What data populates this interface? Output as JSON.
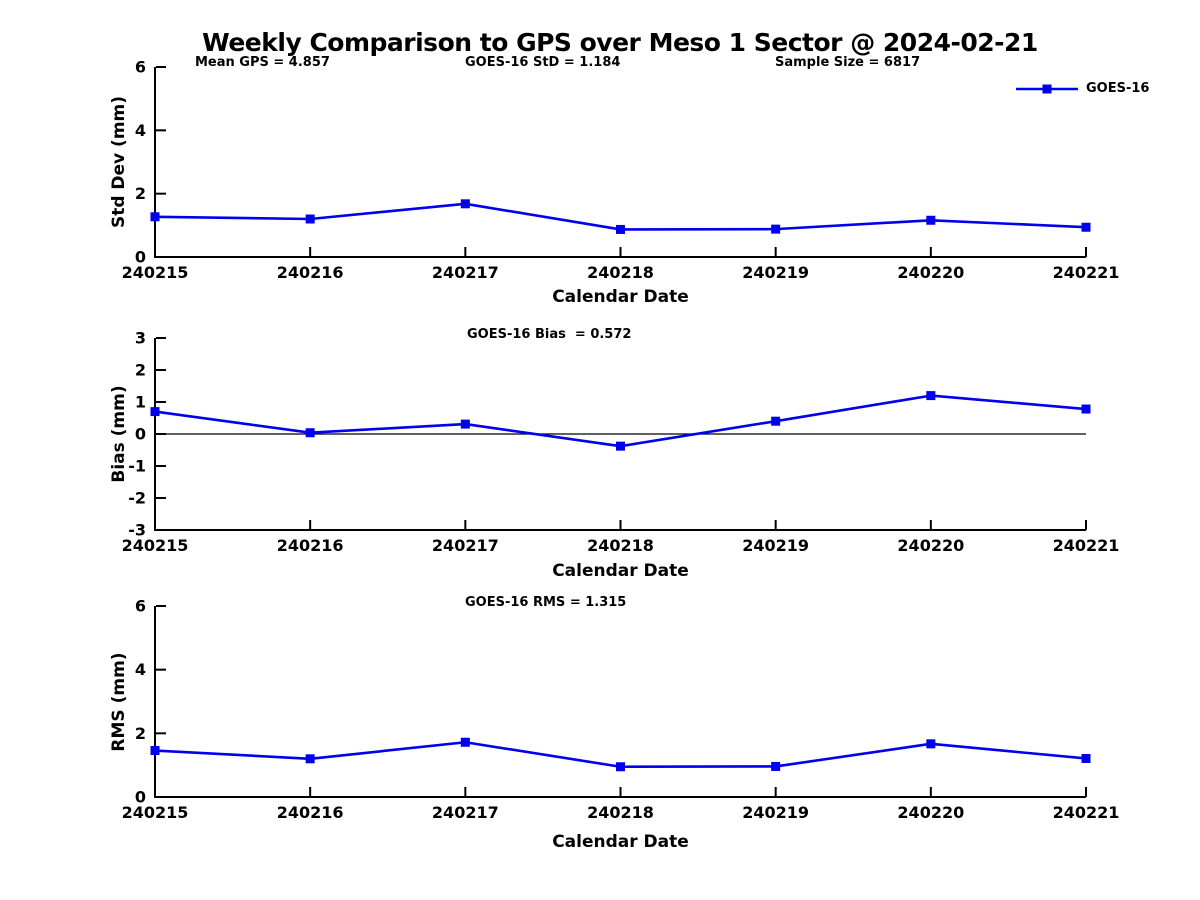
{
  "figure": {
    "title": "Weekly Comparison to GPS over Meso 1 Sector @ 2024-02-21"
  },
  "legend": {
    "label": "GOES-16",
    "position": "top-right"
  },
  "colors": {
    "line": "#0000EE",
    "axis": "#000000",
    "text": "#000000",
    "background": "#FFFFFF"
  },
  "chart_data": [
    {
      "type": "line",
      "subplot": "std-dev",
      "ylabel": "Std Dev (mm)",
      "xlabel": "Calendar Date",
      "categories": [
        "240215",
        "240216",
        "240217",
        "240218",
        "240219",
        "240220",
        "240221"
      ],
      "ylim": [
        0,
        6
      ],
      "yticks": [
        0,
        2,
        4,
        6
      ],
      "zero_line": false,
      "grid": false,
      "annotations": [
        "Mean GPS = 4.857",
        "GOES-16 StD = 1.184",
        "Sample Size = 6817"
      ],
      "series": [
        {
          "name": "GOES-16",
          "values": [
            1.27,
            1.2,
            1.68,
            0.87,
            0.88,
            1.16,
            0.94
          ]
        }
      ]
    },
    {
      "type": "line",
      "subplot": "bias",
      "ylabel": "Bias (mm)",
      "xlabel": "Calendar Date",
      "categories": [
        "240215",
        "240216",
        "240217",
        "240218",
        "240219",
        "240220",
        "240221"
      ],
      "ylim": [
        -3,
        3
      ],
      "yticks": [
        -3,
        -2,
        -1,
        0,
        1,
        2,
        3
      ],
      "zero_line": true,
      "grid": false,
      "annotations": [
        "GOES-16 Bias  = 0.572"
      ],
      "series": [
        {
          "name": "GOES-16",
          "values": [
            0.7,
            0.04,
            0.31,
            -0.38,
            0.4,
            1.2,
            0.78
          ]
        }
      ]
    },
    {
      "type": "line",
      "subplot": "rms",
      "ylabel": "RMS (mm)",
      "xlabel": "Calendar Date",
      "categories": [
        "240215",
        "240216",
        "240217",
        "240218",
        "240219",
        "240220",
        "240221"
      ],
      "ylim": [
        0,
        6
      ],
      "yticks": [
        0,
        2,
        4,
        6
      ],
      "zero_line": false,
      "grid": false,
      "annotations": [
        "GOES-16 RMS = 1.315"
      ],
      "series": [
        {
          "name": "GOES-16",
          "values": [
            1.46,
            1.2,
            1.72,
            0.95,
            0.96,
            1.67,
            1.21
          ]
        }
      ]
    }
  ]
}
